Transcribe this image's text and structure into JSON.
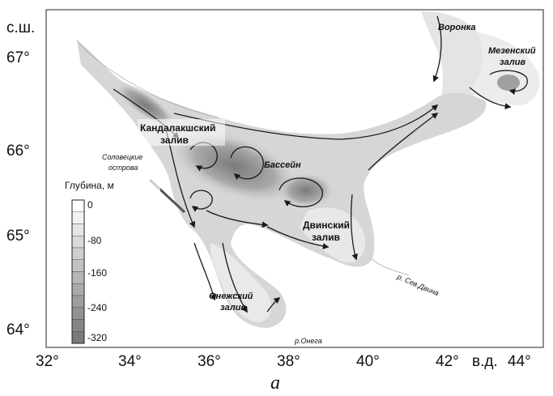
{
  "axes": {
    "lat_label": "с.ш.",
    "lon_label": "в.д.",
    "lat_ticks": [
      "67°",
      "66°",
      "65°",
      "64°"
    ],
    "lon_ticks": [
      "32°",
      "34°",
      "36°",
      "38°",
      "40°",
      "42°",
      "44°"
    ]
  },
  "places": {
    "kandalaksha": "Кандалакшский залив",
    "kandalaksha_line1": "Кандалакшский",
    "kandalaksha_line2": "залив",
    "basin": "Бассейн",
    "dvina_bay_line1": "Двинский",
    "dvina_bay_line2": "залив",
    "onega_bay_line1": "Онежский",
    "onega_bay_line2": "залив",
    "mezen_bay_line1": "Мезенский",
    "mezen_bay_line2": "залив",
    "voronka": "Воронка",
    "solovetsky_line1": "Соловецкие",
    "solovetsky_line2": "острова",
    "sev_dvina_river": "р. Сев.Двина",
    "onega_river": "р.Онега"
  },
  "legend": {
    "title": "Глубина, м",
    "labels": [
      "0",
      "-80",
      "-160",
      "-240",
      "-320"
    ],
    "colors": [
      "#ffffff",
      "#f2f2f2",
      "#e6e6e6",
      "#dadada",
      "#cecece",
      "#c2c2c2",
      "#b6b6b6",
      "#aaaaaa",
      "#9e9e9e",
      "#929292",
      "#868686",
      "#7a7a7a"
    ]
  },
  "caption": "a",
  "colors": {
    "water": "#d9d9d9",
    "deep": "#8a8a8a",
    "shelf": "#ededed",
    "arrow": "#1a1a1a"
  }
}
